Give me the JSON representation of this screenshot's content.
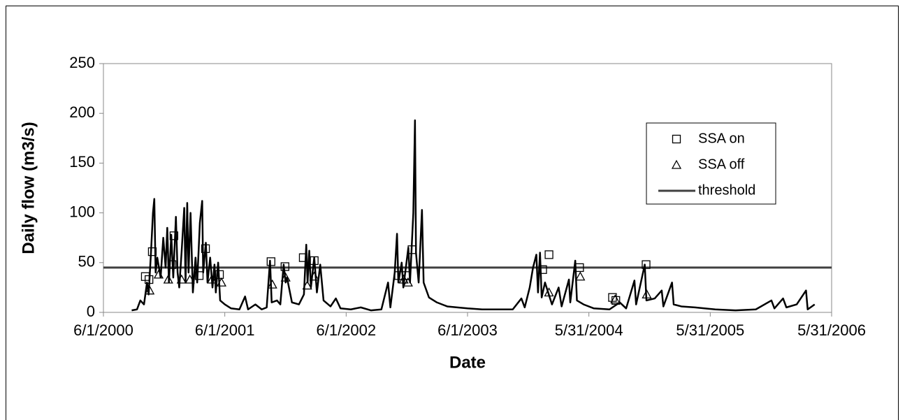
{
  "chart_data": {
    "type": "line",
    "x_label": "Date",
    "y_label": "Daily flow (m3/s)",
    "xlim": [
      "2000-06-01",
      "2006-05-31"
    ],
    "xticks": [
      {
        "value": "2000-06-01",
        "label": "6/1/2000"
      },
      {
        "value": "2001-06-01",
        "label": "6/1/2001"
      },
      {
        "value": "2002-06-01",
        "label": "6/1/2002"
      },
      {
        "value": "2003-06-01",
        "label": "6/1/2003"
      },
      {
        "value": "2004-05-31",
        "label": "5/31/2004"
      },
      {
        "value": "2005-05-31",
        "label": "5/31/2005"
      },
      {
        "value": "2006-05-31",
        "label": "5/31/2006"
      }
    ],
    "ylim": [
      0,
      250
    ],
    "yticks": [
      0,
      50,
      100,
      150,
      200,
      250
    ],
    "grid": false,
    "legend": "right",
    "series": [
      {
        "color": "#000000",
        "x": [
          "2000-08-25",
          "2000-09-10",
          "2000-09-20",
          "2000-10-01",
          "2000-10-10",
          "2000-10-15",
          "2000-10-22",
          "2000-10-28",
          "2000-11-01",
          "2000-11-05",
          "2000-11-10",
          "2000-11-20",
          "2000-11-28",
          "2000-12-05",
          "2000-12-10",
          "2000-12-15",
          "2000-12-22",
          "2000-12-28",
          "2001-01-05",
          "2001-01-10",
          "2001-01-15",
          "2001-01-22",
          "2001-01-30",
          "2001-02-03",
          "2001-02-08",
          "2001-02-12",
          "2001-02-18",
          "2001-02-25",
          "2001-03-05",
          "2001-03-10",
          "2001-03-18",
          "2001-03-25",
          "2001-03-28",
          "2001-04-05",
          "2001-04-10",
          "2001-04-18",
          "2001-04-25",
          "2001-05-01",
          "2001-05-05",
          "2001-05-12",
          "2001-05-18",
          "2001-06-01",
          "2001-06-20",
          "2001-07-15",
          "2001-08-01",
          "2001-08-10",
          "2001-09-01",
          "2001-09-20",
          "2001-10-05",
          "2001-10-15",
          "2001-10-20",
          "2001-11-05",
          "2001-11-15",
          "2001-11-25",
          "2001-12-01",
          "2001-12-05",
          "2001-12-20",
          "2002-01-10",
          "2002-01-25",
          "2002-02-01",
          "2002-02-05",
          "2002-02-10",
          "2002-02-15",
          "2002-02-25",
          "2002-03-05",
          "2002-03-15",
          "2002-03-25",
          "2002-04-15",
          "2002-05-01",
          "2002-05-15",
          "2002-06-15",
          "2002-07-15",
          "2002-08-15",
          "2002-09-15",
          "2002-10-05",
          "2002-10-12",
          "2002-10-25",
          "2002-11-01",
          "2002-11-05",
          "2002-11-15",
          "2002-11-20",
          "2002-12-05",
          "2002-12-10",
          "2002-12-20",
          "2002-12-25",
          "2002-12-28",
          "2003-01-05",
          "2003-01-15",
          "2003-01-20",
          "2003-02-05",
          "2003-03-01",
          "2003-04-01",
          "2003-05-01",
          "2003-06-01",
          "2003-07-15",
          "2003-09-01",
          "2003-10-15",
          "2003-11-10",
          "2003-11-20",
          "2003-12-05",
          "2003-12-15",
          "2003-12-25",
          "2003-12-30",
          "2004-01-05",
          "2004-01-10",
          "2004-01-20",
          "2004-02-10",
          "2004-03-01",
          "2004-03-10",
          "2004-04-01",
          "2004-04-05",
          "2004-04-20",
          "2004-04-25",
          "2004-05-15",
          "2004-06-15",
          "2004-08-01",
          "2004-09-01",
          "2004-09-20",
          "2004-10-15",
          "2004-10-20",
          "2004-11-15",
          "2004-11-20",
          "2004-12-15",
          "2005-01-05",
          "2005-01-10",
          "2005-02-05",
          "2005-02-10",
          "2005-03-05",
          "2005-04-15",
          "2005-06-15",
          "2005-08-15",
          "2005-10-15",
          "2005-12-01",
          "2005-12-10",
          "2006-01-05",
          "2006-01-15",
          "2006-02-15",
          "2006-03-15",
          "2006-03-20",
          "2006-04-10"
        ],
        "values": [
          2,
          3,
          12,
          8,
          30,
          18,
          60,
          100,
          114,
          40,
          55,
          35,
          75,
          45,
          85,
          30,
          78,
          35,
          96,
          40,
          25,
          60,
          105,
          30,
          110,
          40,
          100,
          20,
          55,
          30,
          90,
          112,
          40,
          70,
          30,
          55,
          25,
          48,
          20,
          50,
          12,
          8,
          4,
          3,
          16,
          3,
          8,
          3,
          5,
          52,
          10,
          12,
          8,
          48,
          30,
          35,
          10,
          8,
          18,
          68,
          30,
          62,
          25,
          55,
          20,
          48,
          12,
          6,
          14,
          4,
          3,
          5,
          2,
          3,
          30,
          5,
          40,
          79,
          30,
          50,
          25,
          65,
          30,
          100,
          193,
          60,
          30,
          103,
          30,
          15,
          10,
          6,
          5,
          4,
          3,
          3,
          3,
          14,
          5,
          25,
          45,
          58,
          20,
          60,
          15,
          30,
          8,
          25,
          6,
          33,
          10,
          52,
          12,
          8,
          4,
          3,
          10,
          4,
          32,
          8,
          48,
          12,
          14,
          22,
          6,
          30,
          8,
          6,
          5,
          3,
          2,
          3,
          12,
          4,
          14,
          5,
          8,
          22,
          3,
          8
        ]
      },
      {
        "name": "SSA on",
        "marker": "square",
        "color": "#000000",
        "x": [
          "2000-10-05",
          "2000-10-16",
          "2000-10-26",
          "2000-12-24",
          "2000-12-30",
          "2001-03-16",
          "2001-04-04",
          "2001-05-16",
          "2001-10-18",
          "2001-11-29",
          "2002-01-23",
          "2002-02-25",
          "2002-11-06",
          "2002-11-29",
          "2002-12-16",
          "2004-01-13",
          "2004-02-01",
          "2004-05-03",
          "2004-08-10",
          "2004-08-20",
          "2004-11-19"
        ],
        "values": [
          36,
          33,
          61,
          48,
          77,
          37,
          64,
          38,
          51,
          46,
          55,
          52,
          37,
          37,
          63,
          43,
          58,
          45,
          15,
          12,
          48
        ]
      },
      {
        "name": "SSA off",
        "marker": "triangle",
        "color": "#000000",
        "x": [
          "2000-10-18",
          "2000-11-14",
          "2000-12-13",
          "2001-01-22",
          "2001-02-16",
          "2001-04-23",
          "2001-05-22",
          "2001-10-22",
          "2001-12-01",
          "2002-02-04",
          "2002-02-25",
          "2002-11-21",
          "2002-12-04",
          "2004-02-01",
          "2004-05-05",
          "2004-08-18",
          "2004-11-21"
        ],
        "values": [
          22,
          38,
          33,
          33,
          33,
          33,
          30,
          28,
          35,
          27,
          36,
          33,
          30,
          20,
          36,
          13,
          18
        ]
      }
    ],
    "threshold": {
      "name": "threshold",
      "color": "#404040",
      "value": 45
    }
  }
}
